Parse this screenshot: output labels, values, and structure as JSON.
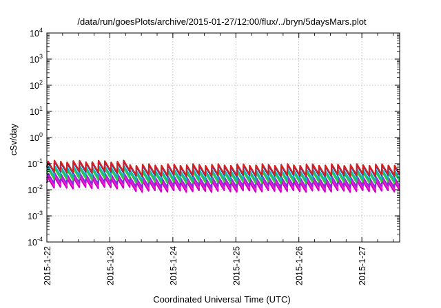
{
  "chart_data": {
    "type": "line",
    "title": "/data/run/goesPlots/archive/2015-01-27/12:00/flux/../bryn/5daysMars.plot",
    "xlabel": "Coordinated Universal Time (UTC)",
    "ylabel": "cSv/day",
    "y_scale": "log",
    "ylim": [
      0.0001,
      10000
    ],
    "y_ticks": [
      {
        "base": "10",
        "exp": "-4"
      },
      {
        "base": "10",
        "exp": "-3"
      },
      {
        "base": "10",
        "exp": "-2"
      },
      {
        "base": "10",
        "exp": "-1"
      },
      {
        "base": "10",
        "exp": "0"
      },
      {
        "base": "10",
        "exp": "1"
      },
      {
        "base": "10",
        "exp": "2"
      },
      {
        "base": "10",
        "exp": "3"
      },
      {
        "base": "10",
        "exp": "4"
      }
    ],
    "x_tick_labels": [
      "2015-1-22",
      "2015-1-23",
      "2015-1-24",
      "2015-1-25",
      "2015-1-26",
      "2015-1-27"
    ],
    "xlim_days": [
      0,
      5.6
    ],
    "grid": true,
    "legend": "none",
    "sawtooth": {
      "period_days": 0.1,
      "first_peak_days": 0.02,
      "decay_fraction": 0.95,
      "early_boost_until_days": 1.25,
      "early_boost_factor": 1.35
    },
    "series": [
      {
        "color": "#d62020",
        "peak": 0.09,
        "trough": 0.037
      },
      {
        "color": "#1f3fbf",
        "peak": 0.082,
        "trough": 0.034
      },
      {
        "color": "#16b3b3",
        "peak": 0.058,
        "trough": 0.024
      },
      {
        "color": "#33cc33",
        "peak": 0.046,
        "trough": 0.019
      },
      {
        "color": "#8a2be2",
        "peak": 0.031,
        "trough": 0.013
      },
      {
        "color": "#ff20c0",
        "peak": 0.026,
        "trough": 0.011
      },
      {
        "color": "#cc00cc",
        "peak": 0.021,
        "trough": 0.0088
      }
    ]
  }
}
